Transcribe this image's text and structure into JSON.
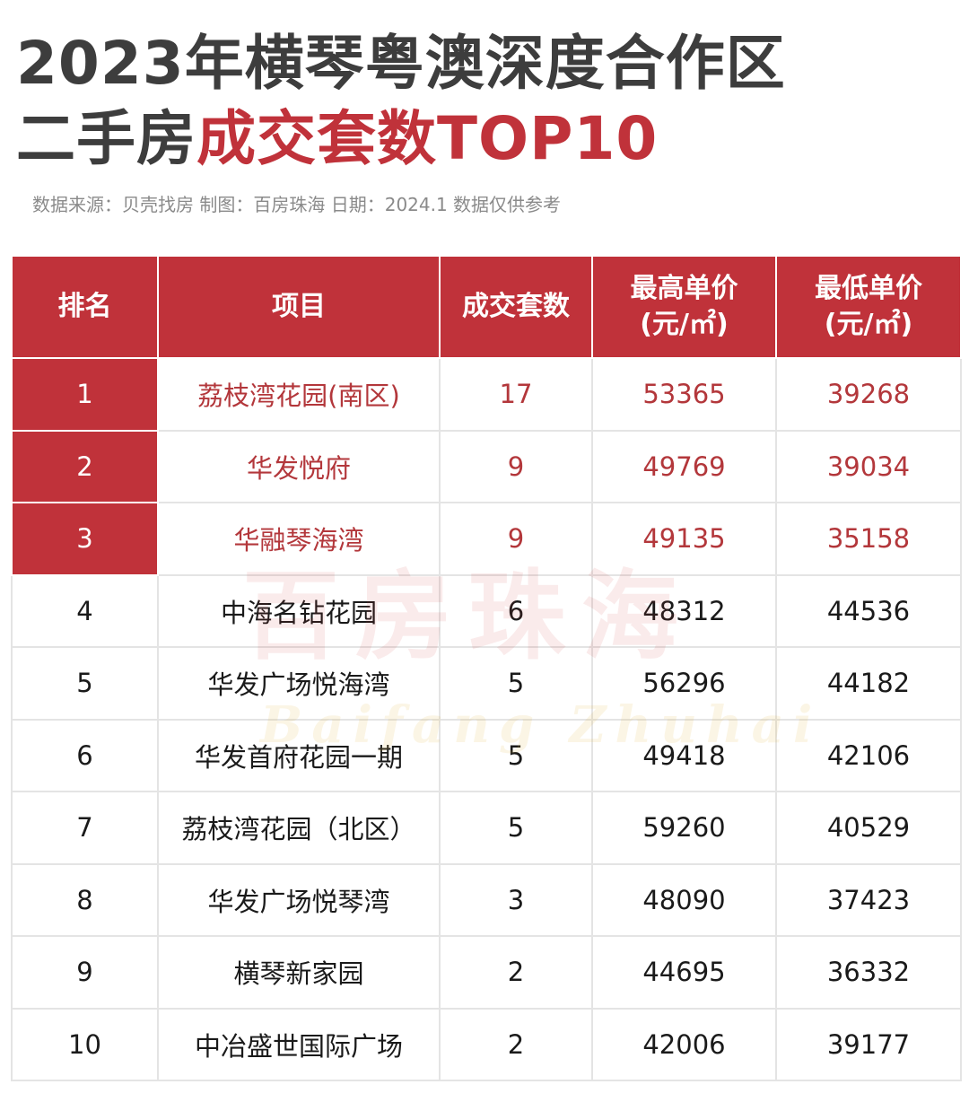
{
  "title": {
    "line1": "2023年横琴粤澳深度合作区",
    "line2_prefix": "二手房",
    "line2_accent": "成交套数TOP10"
  },
  "source_note": "数据来源：贝壳找房 制图：百房珠海 日期：2024.1 数据仅供参考",
  "watermark": {
    "main": "百房珠海",
    "sub": "Baifang Zhuhai"
  },
  "colors": {
    "accent": "#c0323a",
    "text": "#3d3d3d"
  },
  "table": {
    "headers": {
      "rank": "排名",
      "project": "项目",
      "count": "成交套数",
      "max_price": "最高单价",
      "max_price_unit": "(元/㎡)",
      "min_price": "最低单价",
      "min_price_unit": "(元/㎡)"
    }
  },
  "chart_data": {
    "type": "table",
    "title": "2023年横琴粤澳深度合作区二手房成交套数TOP10",
    "columns": [
      "排名",
      "项目",
      "成交套数",
      "最高单价(元/㎡)",
      "最低单价(元/㎡)"
    ],
    "rows": [
      {
        "rank": "1",
        "project": "荔枝湾花园(南区)",
        "count": "17",
        "max_price": "53365",
        "min_price": "39268"
      },
      {
        "rank": "2",
        "project": "华发悦府",
        "count": "9",
        "max_price": "49769",
        "min_price": "39034"
      },
      {
        "rank": "3",
        "project": "华融琴海湾",
        "count": "9",
        "max_price": "49135",
        "min_price": "35158"
      },
      {
        "rank": "4",
        "project": "中海名钻花园",
        "count": "6",
        "max_price": "48312",
        "min_price": "44536"
      },
      {
        "rank": "5",
        "project": "华发广场悦海湾",
        "count": "5",
        "max_price": "56296",
        "min_price": "44182"
      },
      {
        "rank": "6",
        "project": "华发首府花园一期",
        "count": "5",
        "max_price": "49418",
        "min_price": "42106"
      },
      {
        "rank": "7",
        "project": "荔枝湾花园（北区）",
        "count": "5",
        "max_price": "59260",
        "min_price": "40529"
      },
      {
        "rank": "8",
        "project": "华发广场悦琴湾",
        "count": "3",
        "max_price": "48090",
        "min_price": "37423"
      },
      {
        "rank": "9",
        "project": "横琴新家园",
        "count": "2",
        "max_price": "44695",
        "min_price": "36332"
      },
      {
        "rank": "10",
        "project": "中冶盛世国际广场",
        "count": "2",
        "max_price": "42006",
        "min_price": "39177"
      }
    ]
  }
}
